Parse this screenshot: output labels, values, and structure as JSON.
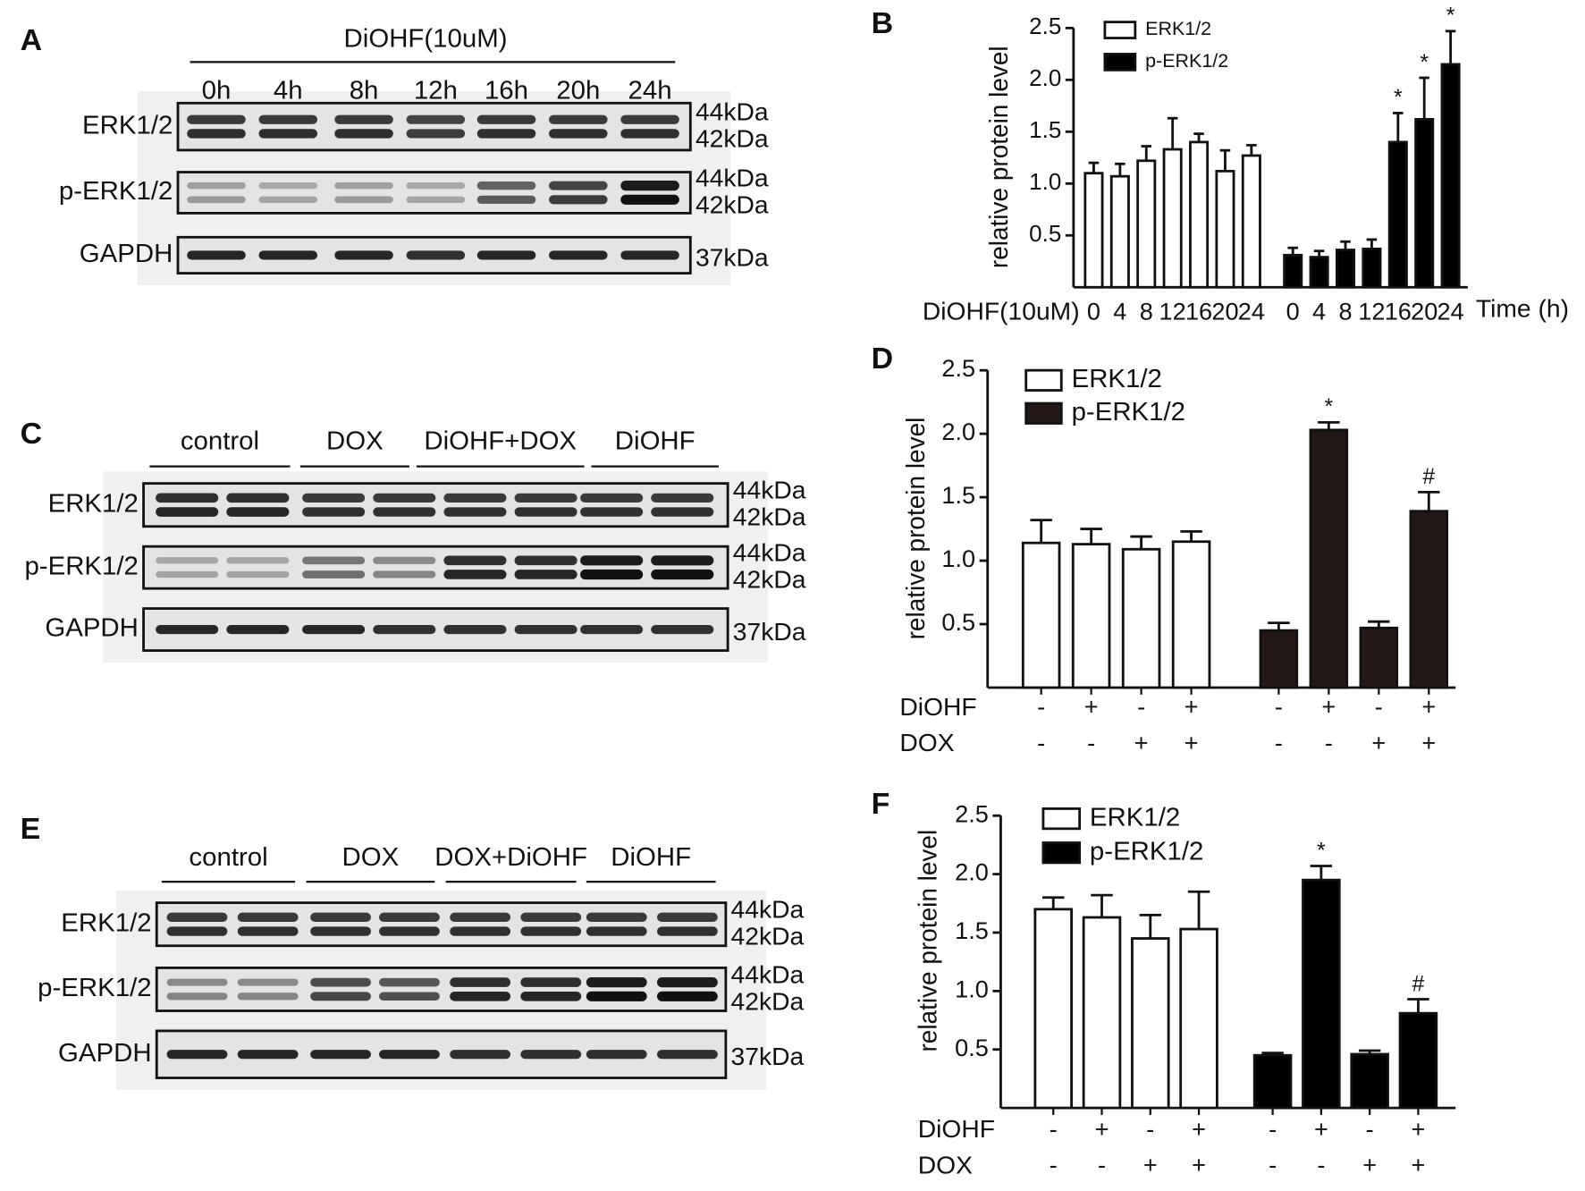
{
  "blots": [
    {
      "label": "A",
      "header": "DiOHF(10uM)",
      "lanes": [
        "0h",
        "4h",
        "8h",
        "12h",
        "16h",
        "20h",
        "24h"
      ],
      "rows": [
        {
          "name": "ERK1/2",
          "markers": [
            "44kDa",
            "42kDa"
          ]
        },
        {
          "name": "p-ERK1/2",
          "markers": [
            "44kDa",
            "42kDa"
          ]
        },
        {
          "name": "GAPDH",
          "markers": [
            "37kDa"
          ]
        }
      ]
    },
    {
      "label": "C",
      "groups": [
        "control",
        "DOX",
        "DiOHF+DOX",
        "DiOHF"
      ],
      "rows": [
        {
          "name": "ERK1/2",
          "markers": [
            "44kDa",
            "42kDa"
          ]
        },
        {
          "name": "p-ERK1/2",
          "markers": [
            "44kDa",
            "42kDa"
          ]
        },
        {
          "name": "GAPDH",
          "markers": [
            "37kDa"
          ]
        }
      ]
    },
    {
      "label": "E",
      "groups": [
        "control",
        "DOX",
        "DOX+DiOHF",
        "DiOHF"
      ],
      "rows": [
        {
          "name": "ERK1/2",
          "markers": [
            "44kDa",
            "42kDa"
          ]
        },
        {
          "name": "p-ERK1/2",
          "markers": [
            "44kDa",
            "42kDa"
          ]
        },
        {
          "name": "GAPDH",
          "markers": [
            "37kDa"
          ]
        }
      ]
    }
  ],
  "chart_data": [
    {
      "type": "bar",
      "panel": "B",
      "ylabel": "relative protein level",
      "xlabel": "Time (h)",
      "ylim": [
        0,
        2.5
      ],
      "yticks": [
        0.5,
        {
          "value": 1,
          "label": "1.0"
        },
        1.5,
        {
          "value": 2,
          "label": "2.0"
        },
        2.5
      ],
      "conditions": [
        {
          "name": "DiOHF(10uM)",
          "values": [
            "0",
            "4",
            "8",
            "12",
            "16",
            "20",
            "24"
          ]
        }
      ],
      "series": [
        {
          "name": "ERK1/2",
          "color": "#ffffff",
          "values": [
            1.1,
            1.07,
            1.22,
            1.33,
            1.4,
            1.12,
            1.27
          ],
          "errors": [
            0.1,
            0.12,
            0.14,
            0.3,
            0.08,
            0.2,
            0.1
          ]
        },
        {
          "name": "p-ERK1/2",
          "color": "#000000",
          "values": [
            0.31,
            0.29,
            0.36,
            0.37,
            1.4,
            1.62,
            2.15
          ],
          "errors": [
            0.07,
            0.06,
            0.08,
            0.09,
            0.28,
            0.4,
            0.32
          ]
        }
      ],
      "annotations": [
        {
          "series": 1,
          "index": 4,
          "text": "*"
        },
        {
          "series": 1,
          "index": 5,
          "text": "*"
        },
        {
          "series": 1,
          "index": 6,
          "text": "*"
        }
      ]
    },
    {
      "type": "bar",
      "panel": "D",
      "ylabel": "relative protein level",
      "ylim": [
        0,
        2.5
      ],
      "yticks": [
        0.5,
        {
          "value": 1,
          "label": "1.0"
        },
        1.5,
        {
          "value": 2,
          "label": "2.0"
        },
        2.5
      ],
      "conditions": [
        {
          "name": "DiOHF",
          "values": [
            "-",
            "+",
            "-",
            "+"
          ]
        },
        {
          "name": "DOX",
          "values": [
            "-",
            "-",
            "+",
            "+"
          ]
        }
      ],
      "series": [
        {
          "name": "ERK1/2",
          "color": "#ffffff",
          "values": [
            1.14,
            1.13,
            1.09,
            1.15
          ],
          "errors": [
            0.18,
            0.12,
            0.1,
            0.08
          ]
        },
        {
          "name": "p-ERK1/2",
          "color": "#231815",
          "values": [
            0.45,
            2.03,
            0.47,
            1.39
          ],
          "errors": [
            0.06,
            0.06,
            0.05,
            0.15
          ]
        }
      ],
      "annotations": [
        {
          "series": 1,
          "index": 1,
          "text": "*"
        },
        {
          "series": 1,
          "index": 3,
          "text": "#"
        }
      ]
    },
    {
      "type": "bar",
      "panel": "F",
      "ylabel": "relative protein level",
      "ylim": [
        0,
        2.5
      ],
      "yticks": [
        0.5,
        {
          "value": 1,
          "label": "1.0"
        },
        1.5,
        {
          "value": 2,
          "label": "2.0"
        },
        2.5
      ],
      "conditions": [
        {
          "name": "DiOHF",
          "values": [
            "-",
            "+",
            "-",
            "+"
          ]
        },
        {
          "name": "DOX",
          "values": [
            "-",
            "-",
            "+",
            "+"
          ]
        }
      ],
      "series": [
        {
          "name": "ERK1/2",
          "color": "#ffffff",
          "values": [
            1.7,
            1.63,
            1.45,
            1.53
          ],
          "errors": [
            0.1,
            0.19,
            0.2,
            0.32
          ]
        },
        {
          "name": "p-ERK1/2",
          "color": "#000000",
          "values": [
            0.45,
            1.95,
            0.46,
            0.81
          ],
          "errors": [
            0.02,
            0.12,
            0.03,
            0.12
          ]
        }
      ],
      "annotations": [
        {
          "series": 1,
          "index": 1,
          "text": "*"
        },
        {
          "series": 1,
          "index": 3,
          "text": "#"
        }
      ]
    }
  ]
}
